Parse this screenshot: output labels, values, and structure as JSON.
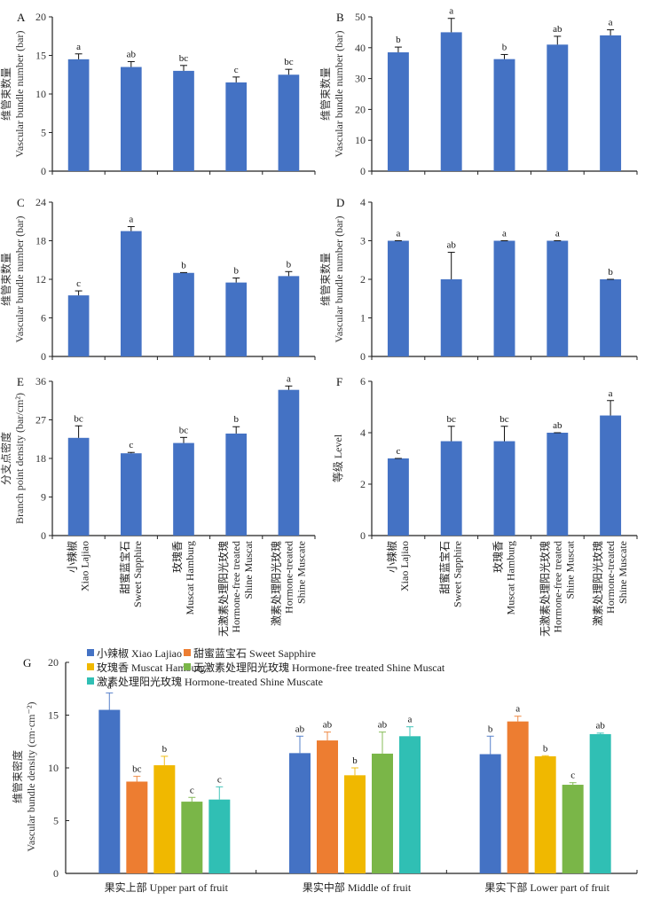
{
  "chart_data": [
    {
      "panel": "A",
      "type": "bar",
      "ylabel_cn": "维管束数量",
      "ylabel_en": "Vascular bundle number (bar)",
      "ylim": [
        0,
        20
      ],
      "yticks": [
        0,
        5,
        10,
        15,
        20
      ],
      "categories": [
        "Xiao Lajiao",
        "Sweet Sapphire",
        "Muscat Hamburg",
        "Hormone-free treated Shine Muscat",
        "Hormone-treated Shine Muscate"
      ],
      "values": [
        14.5,
        13.5,
        13.0,
        11.5,
        12.5
      ],
      "errors": [
        0.7,
        0.7,
        0.7,
        0.7,
        0.7
      ],
      "significance": [
        "a",
        "ab",
        "bc",
        "c",
        "bc"
      ]
    },
    {
      "panel": "B",
      "type": "bar",
      "ylabel_cn": "维管束数量",
      "ylabel_en": "Vascular bundle number (bar)",
      "ylim": [
        0,
        50
      ],
      "yticks": [
        0,
        10,
        20,
        30,
        40,
        50
      ],
      "categories": [
        "Xiao Lajiao",
        "Sweet Sapphire",
        "Muscat Hamburg",
        "Hormone-free treated Shine Muscat",
        "Hormone-treated Shine Muscate"
      ],
      "values": [
        38.5,
        45.0,
        36.3,
        41.0,
        44.0
      ],
      "errors": [
        1.7,
        4.5,
        1.5,
        2.7,
        1.8
      ],
      "significance": [
        "b",
        "a",
        "b",
        "ab",
        "a"
      ]
    },
    {
      "panel": "C",
      "type": "bar",
      "ylabel_cn": "维管束数量",
      "ylabel_en": "Vascular bundle number (bar)",
      "ylim": [
        0,
        24
      ],
      "yticks": [
        0,
        6,
        12,
        18,
        24
      ],
      "categories": [
        "Xiao Lajiao",
        "Sweet Sapphire",
        "Muscat Hamburg",
        "Hormone-free treated Shine Muscat",
        "Hormone-treated Shine Muscate"
      ],
      "values": [
        9.5,
        19.5,
        13.0,
        11.5,
        12.5
      ],
      "errors": [
        0.7,
        0.7,
        0.05,
        0.7,
        0.7
      ],
      "significance": [
        "c",
        "a",
        "b",
        "b",
        "b"
      ]
    },
    {
      "panel": "D",
      "type": "bar",
      "ylabel_cn": "维管束数量",
      "ylabel_en": "Vascular bundle number (bar)",
      "ylim": [
        0,
        4
      ],
      "yticks": [
        0,
        1,
        2,
        3,
        4
      ],
      "categories": [
        "Xiao Lajiao",
        "Sweet Sapphire",
        "Muscat Hamburg",
        "Hormone-free treated Shine Muscat",
        "Hormone-treated Shine Muscate"
      ],
      "values": [
        3.0,
        2.0,
        3.0,
        3.0,
        2.0
      ],
      "errors": [
        0.0,
        0.7,
        0.0,
        0.0,
        0.0
      ],
      "significance": [
        "a",
        "ab",
        "a",
        "a",
        "b"
      ]
    },
    {
      "panel": "E",
      "type": "bar",
      "ylabel_cn": "分支点密度",
      "ylabel_en": "Branch point density (bar/cm²)",
      "ylim": [
        0,
        36
      ],
      "yticks": [
        0,
        9,
        18,
        27,
        36
      ],
      "categories": [
        "Xiao Lajiao",
        "Sweet Sapphire",
        "Muscat Hamburg",
        "Hormone-free treated Shine Muscat",
        "Hormone-treated Shine Muscate"
      ],
      "values": [
        22.8,
        19.2,
        21.6,
        23.8,
        34.0
      ],
      "errors": [
        2.8,
        0.2,
        1.3,
        1.6,
        0.9
      ],
      "significance": [
        "bc",
        "c",
        "bc",
        "b",
        "a"
      ]
    },
    {
      "panel": "F",
      "type": "bar",
      "ylabel_cn": "等级",
      "ylabel_en": "Level",
      "ylim": [
        0,
        6
      ],
      "yticks": [
        0,
        2,
        4,
        6
      ],
      "categories": [
        "Xiao Lajiao",
        "Sweet Sapphire",
        "Muscat Hamburg",
        "Hormone-free treated Shine Muscat",
        "Hormone-treated Shine Muscate"
      ],
      "values": [
        3.0,
        3.67,
        3.67,
        4.0,
        4.67
      ],
      "errors": [
        0.0,
        0.58,
        0.58,
        0.0,
        0.58
      ],
      "significance": [
        "c",
        "bc",
        "bc",
        "ab",
        "a"
      ]
    },
    {
      "panel": "G",
      "type": "bar",
      "ylabel_cn": "维管束密度",
      "ylabel_en": "Vascular bundle density (cm·cm⁻²)",
      "ylim": [
        0,
        20
      ],
      "yticks": [
        0,
        5,
        10,
        15,
        20
      ],
      "categories": [
        "果实上部 Upper part of fruit",
        "果实中部 Middle of fruit",
        "果实下部 Lower part of fruit"
      ],
      "legend_position": "top",
      "series": [
        {
          "name": "小辣椒 Xiao Lajiao",
          "color": "#4472C4",
          "values": [
            15.5,
            11.4,
            11.3
          ],
          "errors": [
            1.6,
            1.6,
            1.7
          ],
          "significance": [
            "a",
            "ab",
            "b"
          ]
        },
        {
          "name": "甜蜜蓝宝石 Sweet Sapphire",
          "color": "#ED7D31",
          "values": [
            8.7,
            12.6,
            14.4
          ],
          "errors": [
            0.5,
            0.8,
            0.5
          ],
          "significance": [
            "bc",
            "ab",
            "a"
          ]
        },
        {
          "name": "玫瑰香 Muscat Hamburg",
          "color": "#F0B800",
          "values": [
            10.25,
            9.3,
            11.1
          ],
          "errors": [
            0.85,
            0.7,
            0.05
          ],
          "significance": [
            "b",
            "b",
            "b"
          ]
        },
        {
          "name": "无激素处理阳光玫瑰 Hormone-free treated Shine Muscat",
          "color": "#7AB648",
          "values": [
            6.8,
            11.35,
            8.4
          ],
          "errors": [
            0.4,
            2.05,
            0.2
          ],
          "significance": [
            "c",
            "ab",
            "c"
          ]
        },
        {
          "name": "激素处理阳光玫瑰 Hormone-treated Shine Muscate",
          "color": "#30BFB4",
          "values": [
            7.0,
            13.0,
            13.2
          ],
          "errors": [
            1.2,
            0.9,
            0.1
          ],
          "significance": [
            "c",
            "a",
            "ab"
          ]
        }
      ]
    }
  ],
  "shared": {
    "bar_color": "#4472C4",
    "category_labels": [
      {
        "cn": "小辣椒",
        "en": [
          "Xiao Lajiao"
        ]
      },
      {
        "cn": "甜蜜蓝宝石",
        "en": [
          "Sweet Sapphire"
        ]
      },
      {
        "cn": "玫瑰香",
        "en": [
          "Muscat Hamburg"
        ]
      },
      {
        "cn": "无激素处理阳光玫瑰",
        "en": [
          "Hormone-free treated",
          "Shine Muscat"
        ]
      },
      {
        "cn": "激素处理阳光玫瑰",
        "en": [
          "Hormone-treated",
          "Shine Muscate"
        ]
      }
    ]
  }
}
